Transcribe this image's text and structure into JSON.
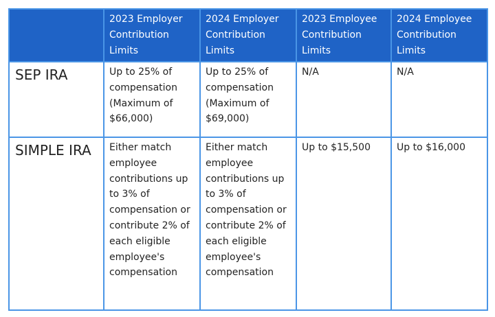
{
  "table": {
    "columns": [
      "2023 Employer Contribution Limits",
      "2024 Employer Contribution Limits",
      "2023 Employee Contribution Limits",
      "2024 Employee Contribution Limits"
    ],
    "rows": [
      {
        "label": "SEP IRA",
        "cells": [
          "Up to 25% of compensation (Maximum of $66,000)",
          "Up to 25% of compensation (Maximum of $69,000)",
          "N/A",
          "N/A"
        ]
      },
      {
        "label": "SIMPLE IRA",
        "cells": [
          "Either match employee contributions up to 3% of compensation or contribute 2% of each eligible employee's compensation",
          "Either match employee contributions up to 3% of compensation or contribute 2% of each eligible employee's compensation",
          "Up to $15,500",
          "Up to $16,000"
        ]
      }
    ]
  }
}
